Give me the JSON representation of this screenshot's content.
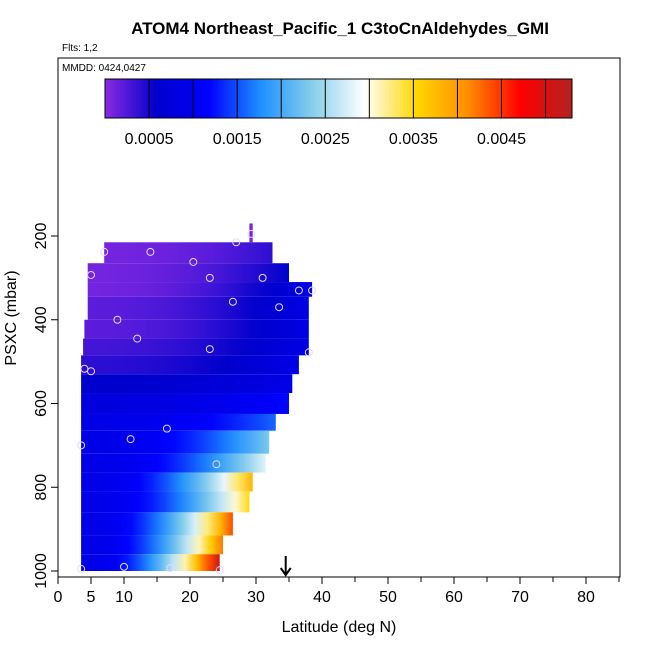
{
  "chart_data": {
    "type": "heatmap",
    "title": "ATOM4 Northeast_Pacific_1 C3toCnAldehydes_GMI",
    "flights_label": "Flts: 1,2",
    "dates_label": "MMDD: 0424,0427",
    "xlabel": "Latitude (deg N)",
    "ylabel": "PSXC (mbar)",
    "xlim": [
      0,
      85
    ],
    "ylim": [
      1000,
      0
    ],
    "x_major_ticks": [
      0,
      5,
      10,
      20,
      30,
      40,
      50,
      60,
      70,
      80
    ],
    "x_minor_ticks": [
      15,
      25,
      35,
      45,
      55,
      65,
      75,
      85
    ],
    "y_ticks": [
      200,
      400,
      600,
      800,
      1000
    ],
    "colorbar": {
      "min": 0.0,
      "max": 0.0053,
      "tick_values": [
        0.0005,
        0.0015,
        0.0025,
        0.0035,
        0.0045
      ],
      "tick_labels": [
        "0.0005",
        "0.0015",
        "0.0025",
        "0.0035",
        "0.0045"
      ],
      "boundaries": [
        0.0005,
        0.001,
        0.0015,
        0.002,
        0.0025,
        0.003,
        0.0035,
        0.004,
        0.0045,
        0.005
      ],
      "colors": [
        "#8a2be2",
        "#0000cc",
        "#0000ff",
        "#1e90ff",
        "#87ceeb",
        "#ffffff",
        "#ffd700",
        "#ff8c00",
        "#ff0000",
        "#b22222"
      ]
    },
    "rows": [
      {
        "p_top": 170,
        "p_bot": 200,
        "x0": 29.0,
        "x1": 29.5,
        "v0": 0.0001,
        "v1": 0.0001
      },
      {
        "p_top": 200,
        "p_bot": 215,
        "x0": 29.0,
        "x1": 29.5,
        "v0": 0.0001,
        "v1": 0.0001
      },
      {
        "p_top": 215,
        "p_bot": 265,
        "x0": 7.0,
        "x1": 32.5,
        "v0": 0.0001,
        "v1": 0.0004
      },
      {
        "p_top": 265,
        "p_bot": 310,
        "x0": 4.5,
        "x1": 35.0,
        "v0": 0.0001,
        "v1": 0.0006
      },
      {
        "p_top": 310,
        "p_bot": 345,
        "x0": 4.5,
        "x1": 38.5,
        "v0": 0.0001,
        "v1": 0.0009
      },
      {
        "p_top": 345,
        "p_bot": 400,
        "x0": 4.5,
        "x1": 38.0,
        "v0": 0.0002,
        "v1": 0.0009
      },
      {
        "p_top": 400,
        "p_bot": 445,
        "x0": 4.0,
        "x1": 38.0,
        "v0": 0.0002,
        "v1": 0.0009
      },
      {
        "p_top": 445,
        "p_bot": 485,
        "x0": 3.8,
        "x1": 38.0,
        "v0": 0.0003,
        "v1": 0.0009
      },
      {
        "p_top": 485,
        "p_bot": 530,
        "x0": 3.5,
        "x1": 36.5,
        "v0": 0.0004,
        "v1": 0.0009
      },
      {
        "p_top": 530,
        "p_bot": 575,
        "x0": 3.5,
        "x1": 35.5,
        "v0": 0.0006,
        "v1": 0.0009
      },
      {
        "p_top": 575,
        "p_bot": 625,
        "x0": 3.5,
        "x1": 35.0,
        "v0": 0.0008,
        "v1": 0.0012
      },
      {
        "p_top": 625,
        "p_bot": 665,
        "x0": 3.5,
        "x1": 33.0,
        "v0": 0.0009,
        "v1": 0.0016
      },
      {
        "p_top": 665,
        "p_bot": 720,
        "x0": 3.5,
        "x1": 32.0,
        "v0": 0.0009,
        "v1": 0.0023
      },
      {
        "p_top": 720,
        "p_bot": 765,
        "x0": 3.5,
        "x1": 31.5,
        "v0": 0.0009,
        "v1": 0.0028
      },
      {
        "p_top": 765,
        "p_bot": 810,
        "x0": 3.5,
        "x1": 29.5,
        "v0": 0.0009,
        "v1": 0.0038
      },
      {
        "p_top": 810,
        "p_bot": 860,
        "x0": 3.5,
        "x1": 29.0,
        "v0": 0.0009,
        "v1": 0.0035
      },
      {
        "p_top": 860,
        "p_bot": 915,
        "x0": 3.5,
        "x1": 26.5,
        "v0": 0.0009,
        "v1": 0.0044
      },
      {
        "p_top": 915,
        "p_bot": 960,
        "x0": 3.5,
        "x1": 25.0,
        "v0": 0.0009,
        "v1": 0.0042
      },
      {
        "p_top": 960,
        "p_bot": 1000,
        "x0": 3.5,
        "x1": 24.5,
        "v0": 0.0009,
        "v1": 0.0051
      }
    ],
    "points": [
      {
        "lat": 29.3,
        "p": 195
      },
      {
        "lat": 27.0,
        "p": 215
      },
      {
        "lat": 7.0,
        "p": 238
      },
      {
        "lat": 14.0,
        "p": 238
      },
      {
        "lat": 20.5,
        "p": 262
      },
      {
        "lat": 5.0,
        "p": 293
      },
      {
        "lat": 23.0,
        "p": 300
      },
      {
        "lat": 31.0,
        "p": 300
      },
      {
        "lat": 36.5,
        "p": 330
      },
      {
        "lat": 38.5,
        "p": 330
      },
      {
        "lat": 26.5,
        "p": 357
      },
      {
        "lat": 33.5,
        "p": 370
      },
      {
        "lat": 9.0,
        "p": 400
      },
      {
        "lat": 12.0,
        "p": 445
      },
      {
        "lat": 23.0,
        "p": 470
      },
      {
        "lat": 38.0,
        "p": 478
      },
      {
        "lat": 4.0,
        "p": 517
      },
      {
        "lat": 5.0,
        "p": 523
      },
      {
        "lat": 16.5,
        "p": 660
      },
      {
        "lat": 11.0,
        "p": 685
      },
      {
        "lat": 3.5,
        "p": 700
      },
      {
        "lat": 24.0,
        "p": 745
      },
      {
        "lat": 3.5,
        "p": 995
      },
      {
        "lat": 10.0,
        "p": 990
      },
      {
        "lat": 17.0,
        "p": 993
      },
      {
        "lat": 24.5,
        "p": 998
      }
    ],
    "marker_latitude": 34.5
  }
}
